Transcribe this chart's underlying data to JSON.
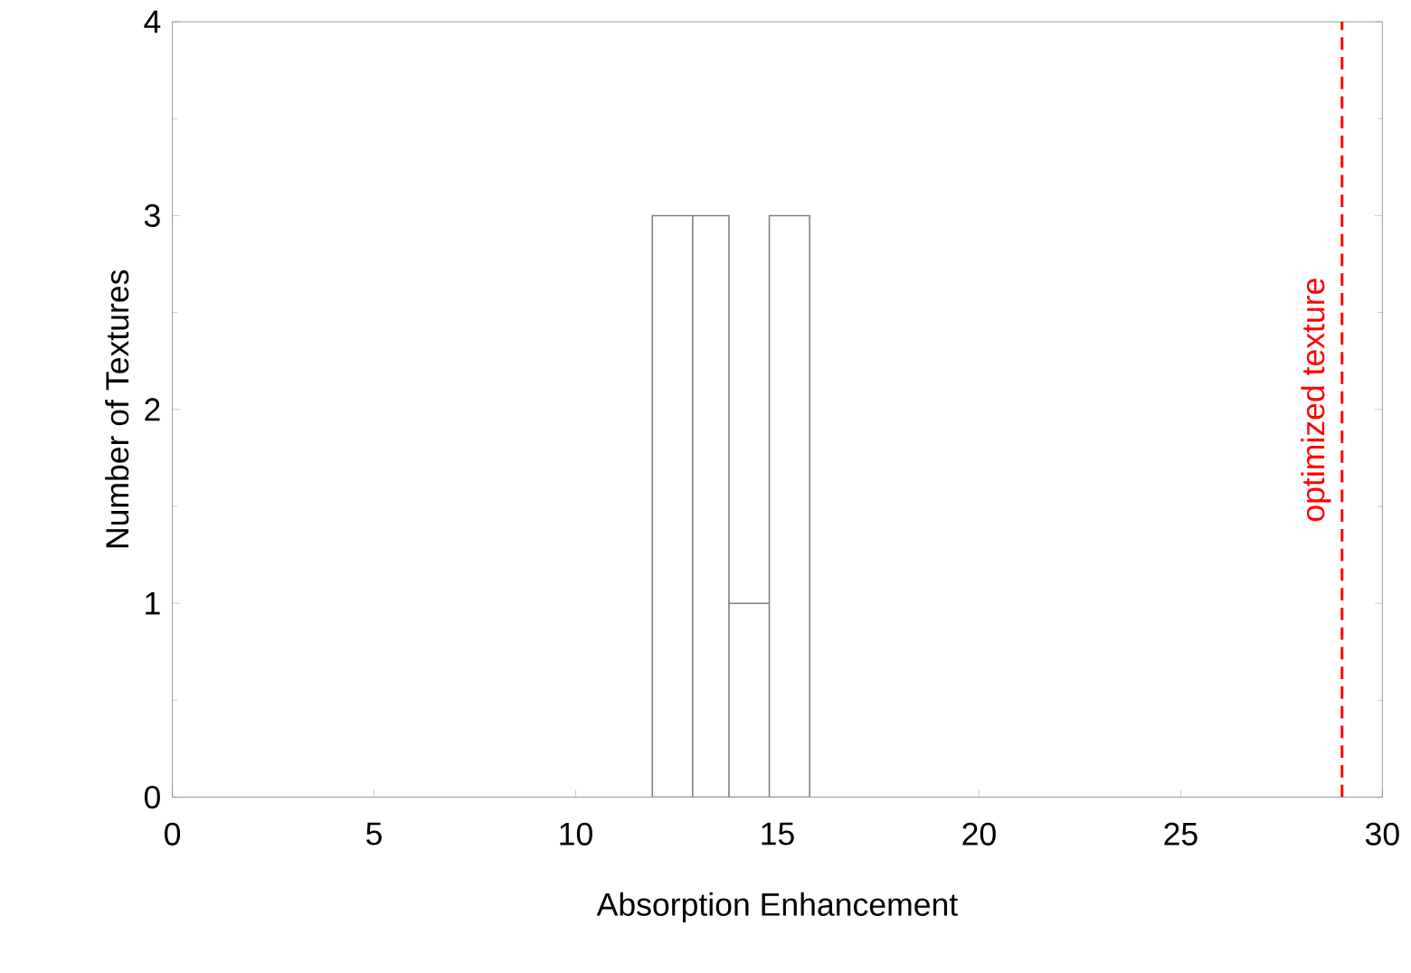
{
  "chart_data": {
    "type": "histogram",
    "xlabel": "Absorption Enhancement",
    "ylabel": "Number of Textures",
    "bins": [
      11.9,
      12.9,
      13.8,
      14.8,
      15.8
    ],
    "values": [
      3,
      3,
      1,
      3
    ],
    "color": "#ffffff",
    "xlim": [
      0,
      30
    ],
    "xticks": [
      0,
      5,
      10,
      15,
      20,
      25,
      30
    ],
    "ylim": [
      0,
      4
    ],
    "yticks": [
      0,
      1,
      2,
      3,
      4
    ],
    "ref_lines": [
      {
        "axis": "x",
        "value": 29,
        "label": "optimized texture",
        "color": "#ff0000",
        "line_style": "dashed"
      }
    ],
    "grid": false
  }
}
